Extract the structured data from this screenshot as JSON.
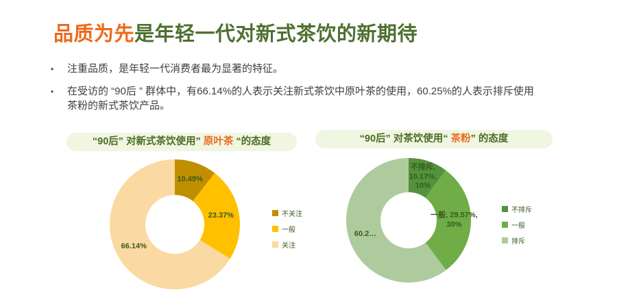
{
  "page": {
    "title_highlight": "品质为先",
    "title_rest": "是年轻一代对新式茶饮的新期待",
    "bullet_marker": "•",
    "bullets": [
      "注重品质，是年轻一代消费者最为显著的特征。",
      "在受访的 “90后 ” 群体中，有66.14%的人表示关注新式茶饮中原叶茶的使用，60.25%的人表示排斥使用茶粉的新式茶饮产品。"
    ]
  },
  "colors": {
    "accent_orange": "#ED6A1C",
    "title_green": "#4E7031",
    "body_text": "#3F3F3F",
    "pill_background": "#F1F6E2",
    "chart_label_green": "#375A1F"
  },
  "chart_data": [
    {
      "type": "pie",
      "subtype": "donut",
      "title_prefix": "“90后” 对新式茶饮使用”",
      "title_highlight": " 原叶茶 ",
      "title_suffix": "“的态度",
      "categories": [
        "不关注",
        "一般",
        "关注"
      ],
      "values": [
        10.49,
        23.37,
        66.14
      ],
      "slice_colors": [
        "#BF8F00",
        "#FFC000",
        "#FBD9A2"
      ],
      "slice_labels": [
        "10.49%",
        "23.37%",
        "66.14%"
      ],
      "legend": [
        "不关注",
        "一般",
        "关注"
      ],
      "legend_position": "right",
      "start_angle_deg": 0,
      "direction": "clockwise"
    },
    {
      "type": "pie",
      "subtype": "donut",
      "title_prefix": "“90后” 对茶饮使用“",
      "title_highlight": " 茶粉",
      "title_suffix": "” 的态度",
      "categories": [
        "不排斥",
        "一般",
        "排斥"
      ],
      "values": [
        10.17,
        29.57,
        60.25
      ],
      "slice_colors": [
        "#54923C",
        "#70AD47",
        "#AECB9D"
      ],
      "slice_labels": [
        "不排斥,\n10.17%,\n10%",
        "一般, 29.57%,\n30%",
        "60.2…"
      ],
      "legend": [
        "不排斥",
        "一般",
        "排斥"
      ],
      "legend_position": "right",
      "start_angle_deg": 0,
      "direction": "clockwise"
    }
  ]
}
